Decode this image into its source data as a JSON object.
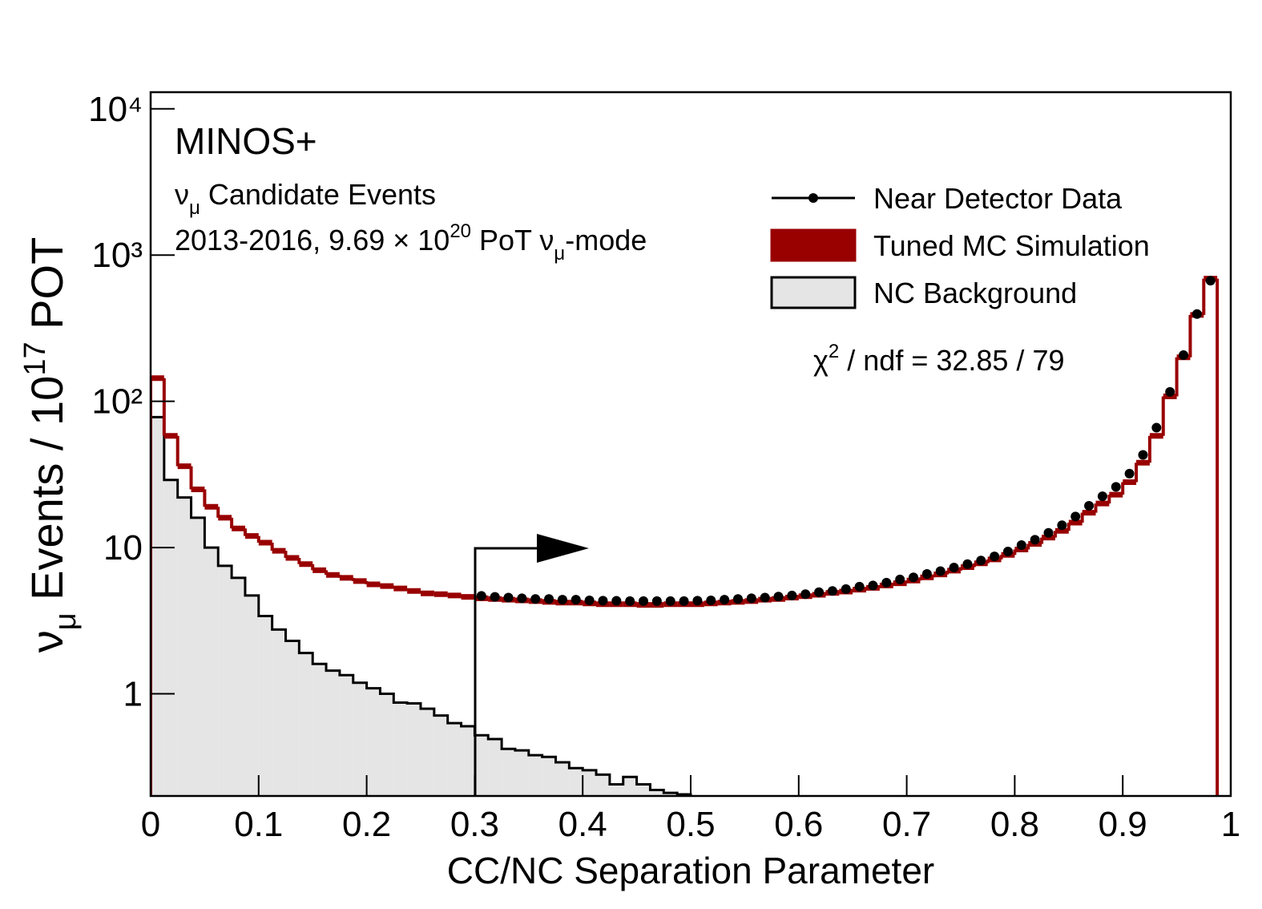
{
  "chart_data": {
    "type": "histogram",
    "xlabel": "CC/NC Separation Parameter",
    "ylabel": [
      "ν",
      "μ",
      " Events / 10",
      "17",
      " POT"
    ],
    "annotations": {
      "experiment": "MINOS+",
      "selection": [
        "ν",
        "μ",
        " Candidate Events"
      ],
      "exposure": [
        "2013-2016, 9.69 × 10",
        "20",
        " PoT ν",
        "μ",
        "-mode"
      ],
      "fit": [
        "χ",
        "2",
        " / ndf = 32.85 / 79"
      ]
    },
    "log_y": true,
    "xlim": [
      0,
      1
    ],
    "xticks": [
      0,
      0.1,
      0.2,
      0.3,
      0.4,
      0.5,
      0.6,
      0.7,
      0.8,
      0.9,
      1
    ],
    "ylim": [
      0.2,
      13000
    ],
    "yticks": [
      1,
      10,
      {
        "value": 100,
        "label": "10²"
      },
      {
        "value": 1000,
        "label": "10³"
      },
      {
        "value": 10000,
        "label": "10⁴"
      }
    ],
    "bins": [
      0,
      0.0125,
      0.025,
      0.0375,
      0.05,
      0.0625,
      0.075,
      0.0875,
      0.1,
      0.1125,
      0.125,
      0.1375,
      0.15,
      0.1625,
      0.175,
      0.1875,
      0.2,
      0.2125,
      0.225,
      0.2375,
      0.25,
      0.2625,
      0.275,
      0.2875,
      0.3,
      0.3125,
      0.325,
      0.3375,
      0.35,
      0.3625,
      0.375,
      0.3875,
      0.4,
      0.4125,
      0.425,
      0.4375,
      0.45,
      0.4625,
      0.475,
      0.4875,
      0.5,
      0.5125,
      0.525,
      0.5375,
      0.55,
      0.5625,
      0.575,
      0.5875,
      0.6,
      0.6125,
      0.625,
      0.6375,
      0.65,
      0.6625,
      0.675,
      0.6875,
      0.7,
      0.7125,
      0.725,
      0.7375,
      0.75,
      0.7625,
      0.775,
      0.7875,
      0.8,
      0.8125,
      0.825,
      0.8375,
      0.85,
      0.8625,
      0.875,
      0.8875,
      0.9,
      0.9125,
      0.925,
      0.9375,
      0.95,
      0.9625,
      0.975,
      0.9875
    ],
    "series": [
      {
        "name": "Near Detector Data",
        "color": "#000000",
        "style": "points",
        "values": [
          null,
          null,
          null,
          null,
          null,
          null,
          null,
          null,
          null,
          null,
          null,
          null,
          null,
          null,
          null,
          null,
          null,
          null,
          null,
          null,
          null,
          null,
          null,
          null,
          4.67,
          4.6,
          4.55,
          4.5,
          4.45,
          4.45,
          4.4,
          4.4,
          4.35,
          4.33,
          4.32,
          4.3,
          4.3,
          4.3,
          4.3,
          4.3,
          4.33,
          4.35,
          4.4,
          4.45,
          4.5,
          4.55,
          4.62,
          4.7,
          4.8,
          4.95,
          5.05,
          5.2,
          5.4,
          5.5,
          5.75,
          6.05,
          6.25,
          6.6,
          6.9,
          7.3,
          7.7,
          8.15,
          8.7,
          9.4,
          10.4,
          11.3,
          12.6,
          14.2,
          16.3,
          19.3,
          22.4,
          26,
          32,
          43,
          66,
          116,
          207,
          395,
          668
        ]
      },
      {
        "name": "Tuned MC Simulation",
        "color": "#990000",
        "style": "step",
        "values": [
          144,
          58,
          36,
          25,
          19,
          16,
          13.5,
          12,
          10.8,
          9.5,
          8.5,
          7.7,
          7.0,
          6.5,
          6.2,
          5.9,
          5.6,
          5.45,
          5.25,
          5.05,
          4.86,
          4.8,
          4.7,
          4.6,
          4.5,
          4.45,
          4.4,
          4.35,
          4.3,
          4.25,
          4.2,
          4.2,
          4.15,
          4.1,
          4.1,
          4.1,
          4.05,
          4.05,
          4.1,
          4.1,
          4.1,
          4.15,
          4.2,
          4.25,
          4.3,
          4.4,
          4.45,
          4.55,
          4.65,
          4.75,
          4.9,
          5.0,
          5.15,
          5.3,
          5.5,
          5.7,
          5.95,
          6.25,
          6.55,
          6.95,
          7.35,
          7.8,
          8.3,
          8.9,
          9.7,
          10.6,
          11.7,
          13.0,
          14.8,
          17.3,
          20.0,
          23,
          28,
          38,
          58,
          108,
          200,
          390,
          690
        ]
      },
      {
        "name": "NC Background",
        "color": "#e5e5e5",
        "style": "filled",
        "values": [
          78,
          29,
          22,
          16,
          10,
          7.5,
          6.2,
          4.7,
          3.4,
          2.75,
          2.3,
          1.9,
          1.6,
          1.44,
          1.34,
          1.19,
          1.09,
          1.0,
          0.87,
          0.86,
          0.79,
          0.71,
          0.63,
          0.6,
          0.52,
          0.49,
          0.42,
          0.41,
          0.38,
          0.37,
          0.34,
          0.31,
          0.3,
          0.28,
          0.24,
          0.27,
          0.24,
          0.22,
          0.21,
          0.205,
          0.19,
          0.18,
          null,
          null,
          null,
          null,
          null,
          null,
          null,
          null,
          null,
          null,
          null,
          null,
          null,
          null,
          null,
          null,
          null,
          null,
          null,
          null,
          null,
          null,
          null,
          null,
          null,
          null,
          null,
          null,
          null,
          null,
          null,
          null,
          null,
          null,
          null,
          null,
          null
        ]
      }
    ]
  }
}
